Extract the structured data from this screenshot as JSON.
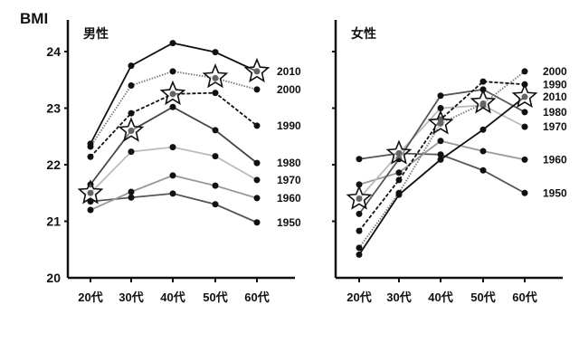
{
  "chart_data": [
    {
      "type": "line",
      "title": "男性",
      "ylabel": "BMI",
      "ylim": [
        20,
        24.5
      ],
      "yticks": [
        "20",
        "21",
        "22",
        "23",
        "24"
      ],
      "categories": [
        "20代",
        "30代",
        "40代",
        "50代",
        "60代"
      ],
      "series": [
        {
          "name": "2010",
          "values": [
            22.37,
            23.75,
            24.15,
            23.99,
            23.65
          ],
          "color": "#111111",
          "dash": "solid"
        },
        {
          "name": "2000",
          "values": [
            22.32,
            23.4,
            23.65,
            23.53,
            23.33
          ],
          "color": "#777777",
          "dash": "dotted"
        },
        {
          "name": "1990",
          "values": [
            22.14,
            22.91,
            23.25,
            23.27,
            22.69
          ],
          "color": "#111111",
          "dash": "dashed"
        },
        {
          "name": "1980",
          "values": [
            21.65,
            22.6,
            23.02,
            22.61,
            22.03
          ],
          "color": "#444444",
          "dash": "solid"
        },
        {
          "name": "1970",
          "values": [
            21.5,
            22.23,
            22.31,
            22.15,
            21.73
          ],
          "color": "#bbbbbb",
          "dash": "solid"
        },
        {
          "name": "1960",
          "values": [
            21.2,
            21.52,
            21.81,
            21.63,
            21.41
          ],
          "color": "#999999",
          "dash": "solid"
        },
        {
          "name": "1950",
          "values": [
            21.35,
            21.42,
            21.49,
            21.3,
            20.98
          ],
          "color": "#555555",
          "dash": "solid"
        }
      ],
      "stars": [
        21.5,
        22.6,
        23.25,
        23.55,
        23.65
      ]
    },
    {
      "type": "line",
      "title": "女性",
      "ylim": [
        20,
        24.5
      ],
      "categories": [
        "20代",
        "30代",
        "40代",
        "50代",
        "60代"
      ],
      "series": [
        {
          "name": "2000",
          "values": [
            20.53,
            21.5,
            22.73,
            23.08,
            23.65
          ],
          "color": "#777777",
          "dash": "dotted"
        },
        {
          "name": "1990",
          "values": [
            20.83,
            21.73,
            22.8,
            23.47,
            23.42
          ],
          "color": "#111111",
          "dash": "dashed"
        },
        {
          "name": "2010",
          "values": [
            20.41,
            21.47,
            22.09,
            22.62,
            23.2
          ],
          "color": "#111111",
          "dash": "solid"
        },
        {
          "name": "1980",
          "values": [
            21.13,
            22.1,
            23.22,
            23.33,
            22.93
          ],
          "color": "#555555",
          "dash": "solid"
        },
        {
          "name": "1970",
          "values": [
            21.4,
            22.2,
            23.0,
            23.05,
            22.67
          ],
          "color": "#bbbbbb",
          "dash": "solid"
        },
        {
          "name": "1960",
          "values": [
            21.65,
            21.86,
            22.42,
            22.24,
            22.09
          ],
          "color": "#999999",
          "dash": "solid"
        },
        {
          "name": "1950",
          "values": [
            22.1,
            22.2,
            22.18,
            21.9,
            21.5
          ],
          "color": "#555555",
          "dash": "solid"
        }
      ],
      "stars": [
        21.4,
        22.2,
        22.73,
        23.1,
        23.2
      ]
    }
  ]
}
